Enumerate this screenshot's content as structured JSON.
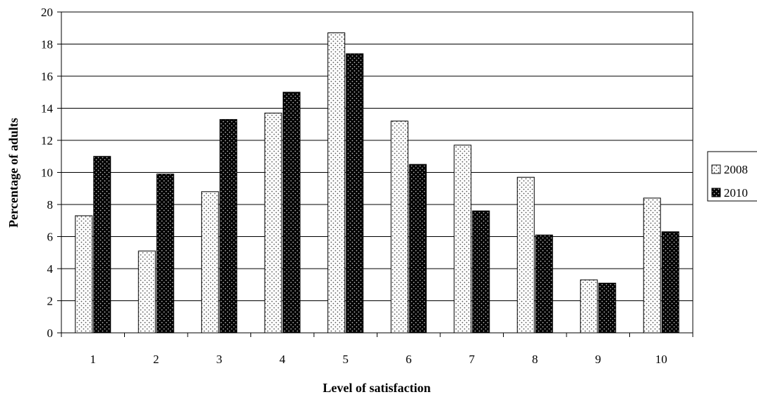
{
  "chart_data": {
    "type": "bar",
    "categories": [
      "1",
      "2",
      "3",
      "4",
      "5",
      "6",
      "7",
      "8",
      "9",
      "10"
    ],
    "series": [
      {
        "name": "2008",
        "values": [
          7.3,
          5.1,
          8.8,
          13.7,
          18.7,
          13.2,
          11.7,
          9.7,
          3.3,
          8.4
        ],
        "pattern": "light-dotted",
        "color": "#ffffff"
      },
      {
        "name": "2010",
        "values": [
          11.0,
          9.9,
          13.3,
          15.0,
          17.4,
          10.5,
          7.6,
          6.1,
          3.1,
          6.3
        ],
        "pattern": "dark-dotted",
        "color": "#000000"
      }
    ],
    "title": "",
    "xlabel": "Level of satisfaction",
    "ylabel": "Percentage of adults",
    "ylim": [
      0,
      20
    ],
    "yticks": [
      "0",
      "2",
      "4",
      "6",
      "8",
      "10",
      "12",
      "14",
      "16",
      "18",
      "20"
    ],
    "grid": true,
    "legend_position": "right"
  }
}
